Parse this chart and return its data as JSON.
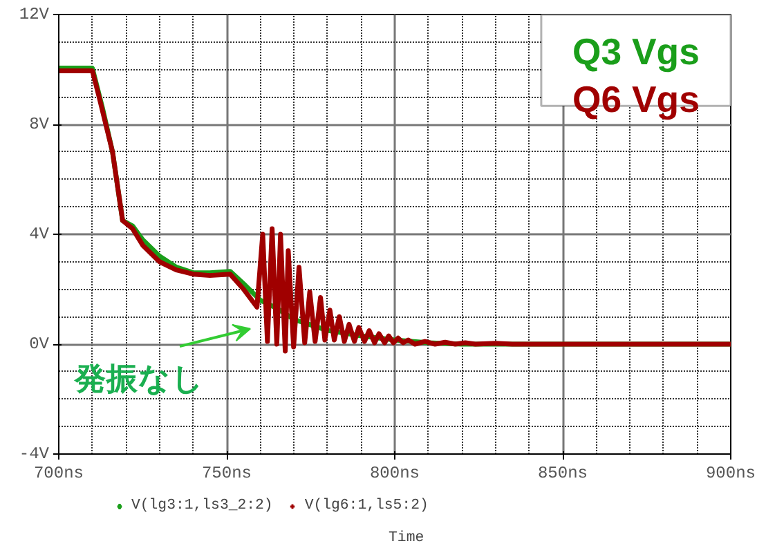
{
  "chart_data": {
    "type": "line",
    "xlabel": "Time",
    "xlim": [
      700,
      900
    ],
    "ylim": [
      -4,
      12
    ],
    "xticks": [
      {
        "value": 700,
        "label": "700ns"
      },
      {
        "value": 750,
        "label": "750ns"
      },
      {
        "value": 800,
        "label": "800ns"
      },
      {
        "value": 850,
        "label": "850ns"
      },
      {
        "value": 900,
        "label": "900ns"
      }
    ],
    "yticks": [
      {
        "value": -4,
        "label": "-4V"
      },
      {
        "value": 0,
        "label": "0V"
      },
      {
        "value": 4,
        "label": "4V"
      },
      {
        "value": 8,
        "label": "8V"
      },
      {
        "value": 12,
        "label": "12V"
      }
    ],
    "grid": true,
    "legend": "bottom",
    "annotations": [
      "Q3 Vgs",
      "Q6 Vgs",
      "発振なし"
    ],
    "series": [
      {
        "name": "V(lg3:1,ls3_2:2)",
        "color": "#1a9e1a",
        "x": [
          700,
          710,
          713,
          716,
          719,
          722,
          725,
          730,
          735,
          740,
          745,
          751,
          755,
          760,
          765,
          770,
          775,
          780,
          790,
          800,
          810,
          820,
          900
        ],
        "values": [
          10.05,
          10.05,
          8.6,
          7,
          4.5,
          4.3,
          3.8,
          3.2,
          2.8,
          2.6,
          2.6,
          2.65,
          2.2,
          1.6,
          1.3,
          0.9,
          0.7,
          0.5,
          0.3,
          0.15,
          0.05,
          0,
          0
        ]
      },
      {
        "name": "V(lg6:1,ls5:2)",
        "color": "#a00000",
        "x": [
          700,
          710,
          712,
          716,
          719,
          722,
          725,
          730,
          735,
          740,
          745,
          751,
          755,
          759,
          760.7,
          762.1,
          763.5,
          764.9,
          766.0,
          767.4,
          768.3,
          769.9,
          771.5,
          773.2,
          774.7,
          776.3,
          777.9,
          779.2,
          780.7,
          782,
          783.5,
          785,
          786.4,
          788,
          789.3,
          791,
          792.4,
          794,
          795.3,
          797,
          798.2,
          799.6,
          801,
          802.5,
          804,
          806,
          809,
          812,
          815,
          818,
          821,
          824,
          830,
          835,
          900
        ],
        "values": [
          9.95,
          9.95,
          9.0,
          7.0,
          4.5,
          4.2,
          3.6,
          3.0,
          2.7,
          2.55,
          2.5,
          2.55,
          2.0,
          1.35,
          4.0,
          0.1,
          4.2,
          0.0,
          4.0,
          -0.25,
          3.4,
          -0.1,
          2.8,
          0.05,
          1.9,
          0.1,
          1.7,
          0.15,
          1.24,
          0.15,
          1.0,
          0.1,
          0.72,
          0.1,
          0.61,
          0.1,
          0.49,
          0.05,
          0.38,
          0.05,
          0.3,
          0.05,
          0.22,
          0.05,
          0.15,
          0.0,
          0.1,
          0.0,
          0.07,
          0.0,
          0.05,
          0.0,
          0.03,
          0.0,
          0.0
        ]
      }
    ]
  }
}
